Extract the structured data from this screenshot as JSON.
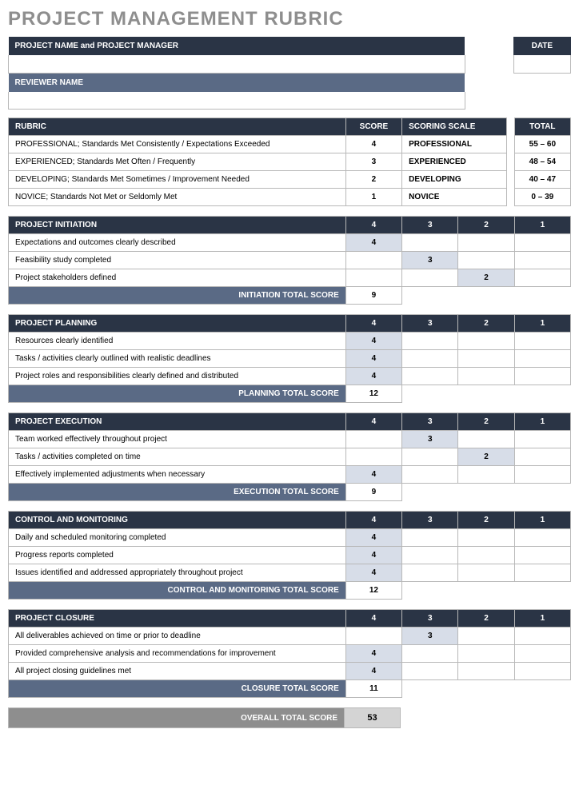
{
  "title": "PROJECT MANAGEMENT RUBRIC",
  "header": {
    "project_label": "PROJECT NAME and PROJECT MANAGER",
    "date_label": "DATE",
    "reviewer_label": "REVIEWER NAME"
  },
  "rubric": {
    "col_rubric": "RUBRIC",
    "col_score": "SCORE",
    "col_scale": "SCORING SCALE",
    "col_total": "TOTAL",
    "rows": [
      {
        "desc": "PROFESSIONAL; Standards Met Consistently / Expectations Exceeded",
        "score": "4",
        "scale": "PROFESSIONAL",
        "total": "55 – 60"
      },
      {
        "desc": "EXPERIENCED; Standards Met Often / Frequently",
        "score": "3",
        "scale": "EXPERIENCED",
        "total": "48 – 54"
      },
      {
        "desc": "DEVELOPING; Standards Met Sometimes / Improvement Needed",
        "score": "2",
        "scale": "DEVELOPING",
        "total": "40 – 47"
      },
      {
        "desc": "NOVICE; Standards Not Met or Seldomly Met",
        "score": "1",
        "scale": "NOVICE",
        "total": "0 – 39"
      }
    ]
  },
  "sections": [
    {
      "title": "PROJECT INITIATION",
      "cols": [
        "4",
        "3",
        "2",
        "1"
      ],
      "criteria": [
        {
          "label": "Expectations and outcomes clearly described",
          "scores": [
            "4",
            "",
            "",
            ""
          ],
          "shade": 0
        },
        {
          "label": "Feasibility study completed",
          "scores": [
            "",
            "3",
            "",
            ""
          ],
          "shade": 1
        },
        {
          "label": "Project stakeholders defined",
          "scores": [
            "",
            "",
            "2",
            ""
          ],
          "shade": 2
        }
      ],
      "total_label": "INITIATION TOTAL SCORE",
      "total_value": "9"
    },
    {
      "title": "PROJECT PLANNING",
      "cols": [
        "4",
        "3",
        "2",
        "1"
      ],
      "criteria": [
        {
          "label": "Resources clearly identified",
          "scores": [
            "4",
            "",
            "",
            ""
          ],
          "shade": 0
        },
        {
          "label": "Tasks / activities clearly outlined with realistic deadlines",
          "scores": [
            "4",
            "",
            "",
            ""
          ],
          "shade": 0
        },
        {
          "label": "Project roles and responsibilities clearly defined and distributed",
          "scores": [
            "4",
            "",
            "",
            ""
          ],
          "shade": 0
        }
      ],
      "total_label": "PLANNING TOTAL SCORE",
      "total_value": "12"
    },
    {
      "title": "PROJECT EXECUTION",
      "cols": [
        "4",
        "3",
        "2",
        "1"
      ],
      "criteria": [
        {
          "label": "Team worked effectively throughout project",
          "scores": [
            "",
            "3",
            "",
            ""
          ],
          "shade": 1
        },
        {
          "label": "Tasks / activities completed on time",
          "scores": [
            "",
            "",
            "2",
            ""
          ],
          "shade": 2
        },
        {
          "label": "Effectively implemented adjustments when necessary",
          "scores": [
            "4",
            "",
            "",
            ""
          ],
          "shade": 0
        }
      ],
      "total_label": "EXECUTION TOTAL SCORE",
      "total_value": "9"
    },
    {
      "title": "CONTROL AND MONITORING",
      "cols": [
        "4",
        "3",
        "2",
        "1"
      ],
      "criteria": [
        {
          "label": "Daily and scheduled monitoring completed",
          "scores": [
            "4",
            "",
            "",
            ""
          ],
          "shade": 0
        },
        {
          "label": "Progress reports completed",
          "scores": [
            "4",
            "",
            "",
            ""
          ],
          "shade": 0
        },
        {
          "label": "Issues identified and addressed appropriately throughout project",
          "scores": [
            "4",
            "",
            "",
            ""
          ],
          "shade": 0
        }
      ],
      "total_label": "CONTROL AND MONITORING TOTAL SCORE",
      "total_value": "12"
    },
    {
      "title": "PROJECT CLOSURE",
      "cols": [
        "4",
        "3",
        "2",
        "1"
      ],
      "criteria": [
        {
          "label": "All deliverables achieved on time or prior to deadline",
          "scores": [
            "",
            "3",
            "",
            ""
          ],
          "shade": 1
        },
        {
          "label": "Provided comprehensive analysis and recommendations for improvement",
          "scores": [
            "4",
            "",
            "",
            ""
          ],
          "shade": 0
        },
        {
          "label": "All project closing guidelines met",
          "scores": [
            "4",
            "",
            "",
            ""
          ],
          "shade": 0
        }
      ],
      "total_label": "CLOSURE TOTAL SCORE",
      "total_value": "11"
    }
  ],
  "overall": {
    "label": "OVERALL TOTAL SCORE",
    "value": "53"
  },
  "layout": {
    "col_label_w": 420,
    "col_score_w": 70,
    "date_box_w": 70
  },
  "colors": {
    "dark": "#2a3445",
    "mid": "#5a6a85",
    "shade": "#d7dde8",
    "grey": "#8e8e8e",
    "overall_val_bg": "#d4d4d4",
    "border": "#b8b8b8"
  }
}
